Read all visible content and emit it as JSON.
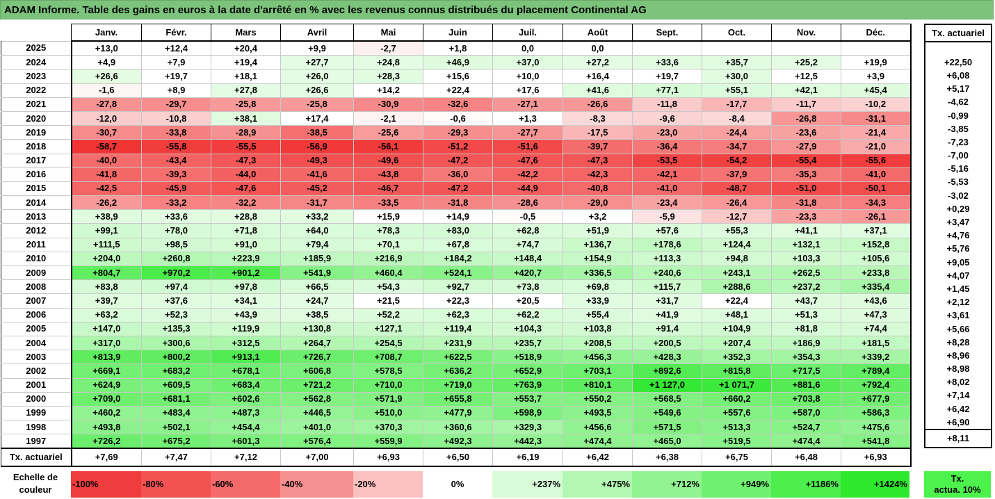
{
  "title": "ADAM Informe. Table des gains en euros à la date d'arrêté en % avec les revenus connus distribués du placement Continental AG",
  "months": [
    "Janv.",
    "Févr.",
    "Mars",
    "Avril",
    "Mai",
    "Juin",
    "Juil.",
    "Août",
    "Sept.",
    "Oct.",
    "Nov.",
    "Déc."
  ],
  "tx_header": "Tx. actuariel",
  "rows": [
    {
      "year": "2025",
      "values": [
        "+13,0",
        "+12,4",
        "+20,4",
        "+9,9",
        "-2,7",
        "+1,8",
        "0,0",
        "0,0",
        "",
        "",
        "",
        ""
      ],
      "tx": ""
    },
    {
      "year": "2024",
      "values": [
        "+4,9",
        "+7,9",
        "+19,4",
        "+27,7",
        "+24,8",
        "+46,9",
        "+37,0",
        "+27,2",
        "+33,6",
        "+35,7",
        "+25,2",
        "+19,9"
      ],
      "tx": "+22,50"
    },
    {
      "year": "2023",
      "values": [
        "+26,6",
        "+19,7",
        "+18,1",
        "+26,0",
        "+28,3",
        "+15,6",
        "+10,0",
        "+16,4",
        "+19,7",
        "+30,0",
        "+12,5",
        "+3,9"
      ],
      "tx": "+6,08"
    },
    {
      "year": "2022",
      "values": [
        "-1,6",
        "+8,9",
        "+27,8",
        "+26,6",
        "+14,2",
        "+22,4",
        "+17,6",
        "+41,6",
        "+77,1",
        "+55,1",
        "+42,1",
        "+45,4"
      ],
      "tx": "+5,17"
    },
    {
      "year": "2021",
      "values": [
        "-27,8",
        "-29,7",
        "-25,8",
        "-25,8",
        "-30,9",
        "-32,6",
        "-27,1",
        "-26,6",
        "-11,8",
        "-17,7",
        "-11,7",
        "-10,2"
      ],
      "tx": "-4,62"
    },
    {
      "year": "2020",
      "values": [
        "-12,0",
        "-10,8",
        "+38,1",
        "+17,4",
        "-2,1",
        "-0,6",
        "+1,3",
        "-8,3",
        "-9,6",
        "-8,4",
        "-26,8",
        "-31,1"
      ],
      "tx": "-0,99"
    },
    {
      "year": "2019",
      "values": [
        "-30,7",
        "-33,8",
        "-28,9",
        "-38,5",
        "-25,6",
        "-29,3",
        "-27,7",
        "-17,5",
        "-23,0",
        "-24,4",
        "-23,6",
        "-21,4"
      ],
      "tx": "-3,85"
    },
    {
      "year": "2018",
      "values": [
        "-58,7",
        "-55,8",
        "-55,5",
        "-56,9",
        "-56,1",
        "-51,2",
        "-51,6",
        "-39,7",
        "-36,4",
        "-34,7",
        "-27,9",
        "-21,0"
      ],
      "tx": "-7,23"
    },
    {
      "year": "2017",
      "values": [
        "-40,0",
        "-43,4",
        "-47,3",
        "-49,3",
        "-49,6",
        "-47,2",
        "-47,6",
        "-47,3",
        "-53,5",
        "-54,2",
        "-55,4",
        "-55,6"
      ],
      "tx": "-7,00"
    },
    {
      "year": "2016",
      "values": [
        "-41,8",
        "-39,3",
        "-44,0",
        "-41,6",
        "-43,8",
        "-36,0",
        "-42,2",
        "-42,3",
        "-42,1",
        "-37,9",
        "-35,3",
        "-41,0"
      ],
      "tx": "-5,16"
    },
    {
      "year": "2015",
      "values": [
        "-42,5",
        "-45,9",
        "-47,6",
        "-45,2",
        "-46,7",
        "-47,2",
        "-44,9",
        "-40,8",
        "-41,0",
        "-48,7",
        "-51,0",
        "-50,1"
      ],
      "tx": "-5,53"
    },
    {
      "year": "2014",
      "values": [
        "-26,2",
        "-33,2",
        "-32,2",
        "-31,7",
        "-33,5",
        "-31,8",
        "-28,6",
        "-29,0",
        "-23,4",
        "-26,4",
        "-31,8",
        "-34,3"
      ],
      "tx": "-3,02"
    },
    {
      "year": "2013",
      "values": [
        "+38,9",
        "+33,6",
        "+28,8",
        "+33,2",
        "+15,9",
        "+14,9",
        "-0,5",
        "+3,2",
        "-5,9",
        "-12,7",
        "-23,3",
        "-26,1"
      ],
      "tx": "+0,29"
    },
    {
      "year": "2012",
      "values": [
        "+99,1",
        "+78,0",
        "+71,8",
        "+64,0",
        "+78,3",
        "+83,0",
        "+62,8",
        "+51,9",
        "+57,6",
        "+55,3",
        "+41,1",
        "+37,1"
      ],
      "tx": "+3,47"
    },
    {
      "year": "2011",
      "values": [
        "+111,5",
        "+98,5",
        "+91,0",
        "+79,4",
        "+70,1",
        "+67,8",
        "+74,7",
        "+136,7",
        "+178,6",
        "+124,4",
        "+132,1",
        "+152,8"
      ],
      "tx": "+4,76"
    },
    {
      "year": "2010",
      "values": [
        "+204,0",
        "+260,8",
        "+223,9",
        "+185,9",
        "+216,9",
        "+184,2",
        "+148,4",
        "+154,9",
        "+113,3",
        "+94,8",
        "+103,3",
        "+105,6"
      ],
      "tx": "+5,76"
    },
    {
      "year": "2009",
      "values": [
        "+804,7",
        "+970,2",
        "+901,2",
        "+541,9",
        "+460,4",
        "+524,1",
        "+420,7",
        "+336,5",
        "+240,6",
        "+243,1",
        "+262,5",
        "+233,8"
      ],
      "tx": "+9,05"
    },
    {
      "year": "2008",
      "values": [
        "+83,8",
        "+97,4",
        "+97,8",
        "+66,5",
        "+54,3",
        "+92,7",
        "+73,8",
        "+69,8",
        "+115,7",
        "+288,6",
        "+237,2",
        "+335,4"
      ],
      "tx": "+4,07"
    },
    {
      "year": "2007",
      "values": [
        "+39,7",
        "+37,6",
        "+34,1",
        "+24,7",
        "+21,5",
        "+22,3",
        "+20,5",
        "+33,9",
        "+31,7",
        "+22,4",
        "+43,7",
        "+43,6"
      ],
      "tx": "+1,45"
    },
    {
      "year": "2006",
      "values": [
        "+63,2",
        "+52,3",
        "+43,9",
        "+38,5",
        "+52,2",
        "+62,3",
        "+62,2",
        "+55,4",
        "+41,9",
        "+48,1",
        "+51,3",
        "+47,3"
      ],
      "tx": "+2,12"
    },
    {
      "year": "2005",
      "values": [
        "+147,0",
        "+135,3",
        "+119,9",
        "+130,8",
        "+127,1",
        "+119,4",
        "+104,3",
        "+103,8",
        "+91,4",
        "+104,9",
        "+81,8",
        "+74,4"
      ],
      "tx": "+3,61"
    },
    {
      "year": "2004",
      "values": [
        "+317,0",
        "+300,6",
        "+312,5",
        "+264,7",
        "+254,5",
        "+231,9",
        "+235,7",
        "+208,5",
        "+200,5",
        "+207,4",
        "+186,9",
        "+181,5"
      ],
      "tx": "+5,66"
    },
    {
      "year": "2003",
      "values": [
        "+813,9",
        "+800,2",
        "+913,1",
        "+726,7",
        "+708,7",
        "+622,5",
        "+518,9",
        "+456,3",
        "+428,3",
        "+352,3",
        "+354,3",
        "+339,2"
      ],
      "tx": "+8,28"
    },
    {
      "year": "2002",
      "values": [
        "+669,1",
        "+683,2",
        "+678,1",
        "+606,8",
        "+578,5",
        "+636,2",
        "+652,9",
        "+703,1",
        "+892,6",
        "+815,8",
        "+717,5",
        "+789,4"
      ],
      "tx": "+8,96"
    },
    {
      "year": "2001",
      "values": [
        "+624,9",
        "+609,5",
        "+683,4",
        "+721,2",
        "+710,0",
        "+719,0",
        "+763,9",
        "+810,1",
        "+1 127,0",
        "+1 071,7",
        "+881,6",
        "+792,4"
      ],
      "tx": "+8,98"
    },
    {
      "year": "2000",
      "values": [
        "+709,0",
        "+681,1",
        "+602,6",
        "+562,8",
        "+571,9",
        "+655,8",
        "+553,7",
        "+550,2",
        "+568,5",
        "+660,2",
        "+703,8",
        "+677,9"
      ],
      "tx": "+8,02"
    },
    {
      "year": "1999",
      "values": [
        "+460,2",
        "+483,4",
        "+487,3",
        "+446,5",
        "+510,0",
        "+477,9",
        "+598,9",
        "+493,5",
        "+549,6",
        "+557,6",
        "+587,0",
        "+586,3"
      ],
      "tx": "+7,14"
    },
    {
      "year": "1998",
      "values": [
        "+493,8",
        "+502,1",
        "+454,4",
        "+401,0",
        "+370,3",
        "+360,6",
        "+329,3",
        "+456,6",
        "+571,5",
        "+513,3",
        "+524,7",
        "+475,6"
      ],
      "tx": "+6,42"
    },
    {
      "year": "1997",
      "values": [
        "+726,2",
        "+675,2",
        "+601,3",
        "+576,4",
        "+559,9",
        "+492,3",
        "+442,3",
        "+474,4",
        "+465,0",
        "+519,5",
        "+474,4",
        "+541,8"
      ],
      "tx": "+6,90"
    }
  ],
  "footer": {
    "label": "Tx. actuariel",
    "values": [
      "+7,69",
      "+7,47",
      "+7,12",
      "+7,00",
      "+6,93",
      "+6,50",
      "+6,19",
      "+6,42",
      "+6,38",
      "+6,75",
      "+6,48",
      "+6,93"
    ],
    "tx": "+8,11"
  },
  "scale": {
    "label_line1": "Echelle de",
    "label_line2": "couleur",
    "items": [
      {
        "label": "-100%",
        "color": "#f03c3c",
        "align": "left"
      },
      {
        "label": "-80%",
        "color": "#f25252",
        "align": "left"
      },
      {
        "label": "-60%",
        "color": "#f46a6a",
        "align": "left"
      },
      {
        "label": "-40%",
        "color": "#f79090",
        "align": "left"
      },
      {
        "label": "-20%",
        "color": "#fbc0c0",
        "align": "left"
      },
      {
        "label": "0%",
        "color": "#ffffff",
        "align": "center"
      },
      {
        "label": "+237%",
        "color": "#d8fcd8",
        "align": "right"
      },
      {
        "label": "+475%",
        "color": "#b3f7b3",
        "align": "right"
      },
      {
        "label": "+712%",
        "color": "#93f393",
        "align": "right"
      },
      {
        "label": "+949%",
        "color": "#6ff06f",
        "align": "right"
      },
      {
        "label": "+1186%",
        "color": "#4ded4d",
        "align": "right"
      },
      {
        "label": "+1424%",
        "color": "#2ee82e",
        "align": "right"
      }
    ],
    "tx_line1": "Tx.",
    "tx_line2": "actua. 10%",
    "tx_color": "#4df24d"
  }
}
